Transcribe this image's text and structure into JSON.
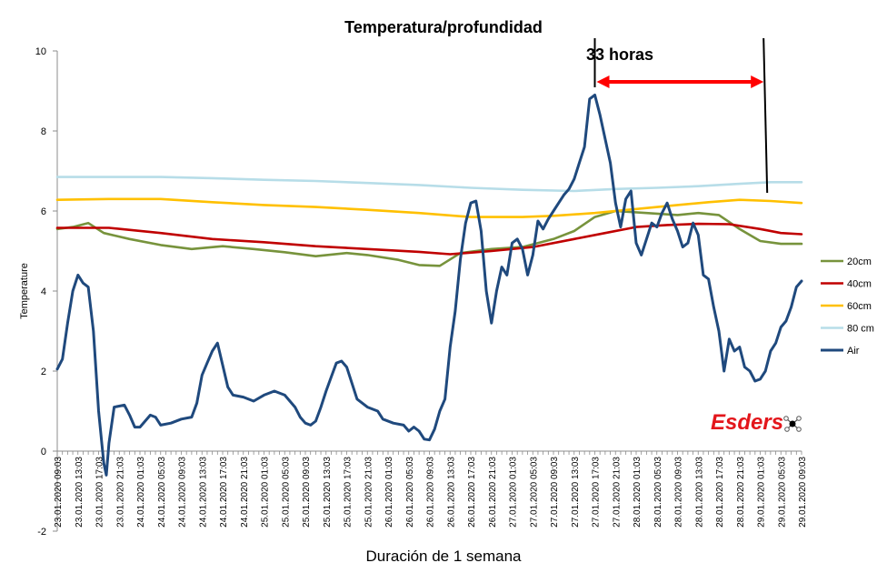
{
  "chart_data": {
    "type": "line",
    "title": "Temperatura/profundidad",
    "xlabel": "Duración de 1 semana",
    "ylabel": "Temperature",
    "ylim": [
      -2,
      10
    ],
    "yticks": [
      "-2",
      "0",
      "2",
      "4",
      "6",
      "8",
      "10"
    ],
    "grid": false,
    "legend_position": "right",
    "x_tick_labels": [
      "23.01.2020 09:03",
      "23.01.2020 13:03",
      "23.01.2020 17:03",
      "23.01.2020 21:03",
      "24.01.2020 01:03",
      "24.01.2020 05:03",
      "24.01.2020 09:03",
      "24.01.2020 13:03",
      "24.01.2020 17:03",
      "24.01.2020 21:03",
      "25.01.2020 01:03",
      "25.01.2020 05:03",
      "25.01.2020 09:03",
      "25.01.2020 13:03",
      "25.01.2020 17:03",
      "25.01.2020 21:03",
      "26.01.2020 01:03",
      "26.01.2020 05:03",
      "26.01.2020 09:03",
      "26.01.2020 13:03",
      "26.01.2020 17:03",
      "26.01.2020 21:03",
      "27.01.2020 01:03",
      "27.01.2020 05:03",
      "27.01.2020 09:03",
      "27.01.2020 13:03",
      "27.01.2020 17:03",
      "27.01.2020 21:03",
      "28.01.2020 01:03",
      "28.01.2020 05:03",
      "28.01.2020 09:03",
      "28.01.2020 13:03",
      "28.01.2020 17:03",
      "28.01.2020 21:03",
      "29.01.2020 01:03",
      "29.01.2020 05:03",
      "29.01.2020 09:03"
    ],
    "x_hours_range": [
      0,
      144
    ],
    "series": [
      {
        "name": "20cm",
        "color": "#77933c",
        "points": [
          [
            0,
            5.55
          ],
          [
            3,
            5.6
          ],
          [
            6,
            5.7
          ],
          [
            9,
            5.45
          ],
          [
            14,
            5.3
          ],
          [
            20,
            5.15
          ],
          [
            26,
            5.05
          ],
          [
            32,
            5.12
          ],
          [
            38,
            5.05
          ],
          [
            44,
            4.97
          ],
          [
            50,
            4.87
          ],
          [
            56,
            4.95
          ],
          [
            60,
            4.9
          ],
          [
            66,
            4.78
          ],
          [
            70,
            4.65
          ],
          [
            74,
            4.63
          ],
          [
            78,
            4.95
          ],
          [
            84,
            5.05
          ],
          [
            90,
            5.1
          ],
          [
            96,
            5.3
          ],
          [
            100,
            5.5
          ],
          [
            104,
            5.85
          ],
          [
            108,
            6.0
          ],
          [
            114,
            5.95
          ],
          [
            120,
            5.9
          ],
          [
            124,
            5.95
          ],
          [
            128,
            5.9
          ],
          [
            132,
            5.55
          ],
          [
            136,
            5.25
          ],
          [
            140,
            5.18
          ],
          [
            144,
            5.18
          ]
        ]
      },
      {
        "name": "40cm",
        "color": "#c00000",
        "points": [
          [
            0,
            5.58
          ],
          [
            10,
            5.58
          ],
          [
            20,
            5.45
          ],
          [
            30,
            5.3
          ],
          [
            40,
            5.22
          ],
          [
            50,
            5.12
          ],
          [
            60,
            5.05
          ],
          [
            70,
            4.98
          ],
          [
            76,
            4.92
          ],
          [
            84,
            5.0
          ],
          [
            92,
            5.1
          ],
          [
            100,
            5.3
          ],
          [
            106,
            5.45
          ],
          [
            112,
            5.6
          ],
          [
            118,
            5.65
          ],
          [
            124,
            5.68
          ],
          [
            130,
            5.67
          ],
          [
            136,
            5.55
          ],
          [
            140,
            5.45
          ],
          [
            144,
            5.42
          ]
        ]
      },
      {
        "name": "60cm",
        "color": "#ffc000",
        "points": [
          [
            0,
            6.28
          ],
          [
            10,
            6.3
          ],
          [
            20,
            6.3
          ],
          [
            30,
            6.22
          ],
          [
            40,
            6.15
          ],
          [
            50,
            6.1
          ],
          [
            60,
            6.03
          ],
          [
            70,
            5.95
          ],
          [
            80,
            5.85
          ],
          [
            90,
            5.85
          ],
          [
            96,
            5.88
          ],
          [
            104,
            5.95
          ],
          [
            112,
            6.05
          ],
          [
            120,
            6.15
          ],
          [
            126,
            6.22
          ],
          [
            132,
            6.28
          ],
          [
            138,
            6.25
          ],
          [
            144,
            6.2
          ]
        ]
      },
      {
        "name": "80 cm",
        "color": "#b7dde8",
        "points": [
          [
            0,
            6.85
          ],
          [
            10,
            6.85
          ],
          [
            20,
            6.85
          ],
          [
            30,
            6.82
          ],
          [
            40,
            6.78
          ],
          [
            50,
            6.75
          ],
          [
            60,
            6.7
          ],
          [
            70,
            6.65
          ],
          [
            80,
            6.58
          ],
          [
            90,
            6.53
          ],
          [
            100,
            6.5
          ],
          [
            108,
            6.55
          ],
          [
            116,
            6.58
          ],
          [
            124,
            6.62
          ],
          [
            132,
            6.68
          ],
          [
            138,
            6.72
          ],
          [
            144,
            6.72
          ]
        ]
      },
      {
        "name": "Air",
        "color": "#1f497d",
        "points": [
          [
            0,
            2.05
          ],
          [
            1,
            2.3
          ],
          [
            2,
            3.2
          ],
          [
            3,
            4.0
          ],
          [
            4,
            4.4
          ],
          [
            5,
            4.2
          ],
          [
            6,
            4.1
          ],
          [
            7,
            3.0
          ],
          [
            8,
            1.0
          ],
          [
            9,
            -0.3
          ],
          [
            9.5,
            -0.6
          ],
          [
            10,
            0.2
          ],
          [
            11,
            1.1
          ],
          [
            13,
            1.15
          ],
          [
            14,
            0.9
          ],
          [
            15,
            0.6
          ],
          [
            16,
            0.6
          ],
          [
            18,
            0.9
          ],
          [
            19,
            0.85
          ],
          [
            20,
            0.65
          ],
          [
            22,
            0.7
          ],
          [
            24,
            0.8
          ],
          [
            26,
            0.85
          ],
          [
            27,
            1.2
          ],
          [
            28,
            1.9
          ],
          [
            29,
            2.2
          ],
          [
            30,
            2.5
          ],
          [
            31,
            2.7
          ],
          [
            32,
            2.15
          ],
          [
            33,
            1.6
          ],
          [
            34,
            1.4
          ],
          [
            36,
            1.35
          ],
          [
            38,
            1.25
          ],
          [
            40,
            1.4
          ],
          [
            42,
            1.5
          ],
          [
            44,
            1.4
          ],
          [
            46,
            1.1
          ],
          [
            47,
            0.85
          ],
          [
            48,
            0.7
          ],
          [
            49,
            0.65
          ],
          [
            50,
            0.75
          ],
          [
            51,
            1.1
          ],
          [
            52,
            1.5
          ],
          [
            53,
            1.85
          ],
          [
            54,
            2.2
          ],
          [
            55,
            2.25
          ],
          [
            56,
            2.1
          ],
          [
            57,
            1.7
          ],
          [
            58,
            1.3
          ],
          [
            59,
            1.2
          ],
          [
            60,
            1.1
          ],
          [
            62,
            1.0
          ],
          [
            63,
            0.8
          ],
          [
            65,
            0.7
          ],
          [
            67,
            0.65
          ],
          [
            68,
            0.5
          ],
          [
            69,
            0.6
          ],
          [
            70,
            0.5
          ],
          [
            71,
            0.3
          ],
          [
            72,
            0.28
          ],
          [
            73,
            0.55
          ],
          [
            74,
            1.0
          ],
          [
            75,
            1.3
          ],
          [
            76,
            2.6
          ],
          [
            77,
            3.5
          ],
          [
            78,
            4.8
          ],
          [
            79,
            5.7
          ],
          [
            80,
            6.2
          ],
          [
            81,
            6.25
          ],
          [
            82,
            5.5
          ],
          [
            83,
            4.0
          ],
          [
            84,
            3.2
          ],
          [
            85,
            4.0
          ],
          [
            86,
            4.6
          ],
          [
            87,
            4.4
          ],
          [
            88,
            5.2
          ],
          [
            89,
            5.3
          ],
          [
            90,
            5.05
          ],
          [
            91,
            4.4
          ],
          [
            92,
            4.9
          ],
          [
            93,
            5.75
          ],
          [
            94,
            5.55
          ],
          [
            95,
            5.8
          ],
          [
            96,
            6.0
          ],
          [
            97,
            6.2
          ],
          [
            98,
            6.4
          ],
          [
            99,
            6.55
          ],
          [
            100,
            6.8
          ],
          [
            101,
            7.2
          ],
          [
            102,
            7.6
          ],
          [
            103,
            8.8
          ],
          [
            104,
            8.9
          ],
          [
            105,
            8.4
          ],
          [
            106,
            7.8
          ],
          [
            107,
            7.2
          ],
          [
            108,
            6.2
          ],
          [
            109,
            5.6
          ],
          [
            110,
            6.3
          ],
          [
            111,
            6.5
          ],
          [
            112,
            5.2
          ],
          [
            113,
            4.9
          ],
          [
            114,
            5.3
          ],
          [
            115,
            5.7
          ],
          [
            116,
            5.6
          ],
          [
            117,
            5.95
          ],
          [
            118,
            6.2
          ],
          [
            119,
            5.8
          ],
          [
            120,
            5.5
          ],
          [
            121,
            5.1
          ],
          [
            122,
            5.2
          ],
          [
            123,
            5.7
          ],
          [
            124,
            5.4
          ],
          [
            125,
            4.4
          ],
          [
            126,
            4.3
          ],
          [
            127,
            3.6
          ],
          [
            128,
            3.0
          ],
          [
            129,
            2.0
          ],
          [
            130,
            2.8
          ],
          [
            131,
            2.5
          ],
          [
            132,
            2.6
          ],
          [
            133,
            2.1
          ],
          [
            134,
            2.0
          ],
          [
            135,
            1.75
          ],
          [
            136,
            1.8
          ],
          [
            137,
            2.0
          ],
          [
            138,
            2.5
          ],
          [
            139,
            2.7
          ],
          [
            140,
            3.1
          ],
          [
            141,
            3.25
          ],
          [
            142,
            3.6
          ],
          [
            143,
            4.1
          ],
          [
            144,
            4.25
          ]
        ]
      }
    ],
    "annotation": {
      "text": "33 horas",
      "from_hours": 104,
      "to_hours": 137
    }
  },
  "logo": {
    "text": "Esders"
  }
}
